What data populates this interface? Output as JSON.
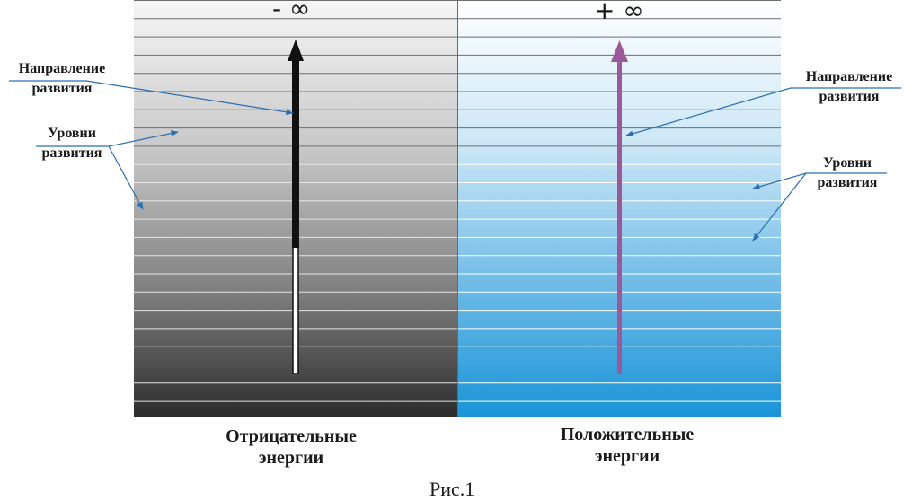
{
  "top": {
    "neg_infinity": "- ∞",
    "pos_infinity": "+ ∞"
  },
  "left_panel": {
    "direction_label_line1": "Направление",
    "direction_label_line2": "развития",
    "levels_label_line1": "Уровни",
    "levels_label_line2": "развития",
    "caption_line1": "Отрицательные",
    "caption_line2": "энергии",
    "arrow_color": "#111111"
  },
  "right_panel": {
    "direction_label_line1": "Направление",
    "direction_label_line2": "развития",
    "levels_label_line1": "Уровни",
    "levels_label_line2": "развития",
    "caption_line1": "Положительные",
    "caption_line2": "энергии",
    "arrow_color": "#9a5a9a"
  },
  "figure_caption": "Рис.1",
  "colors": {
    "left_gradient_top": "#f6f6f6",
    "left_gradient_bottom": "#2c2c2c",
    "right_gradient_top": "#ffffff",
    "right_gradient_bottom": "#1a94d8",
    "pointer_color": "#2a6fb0"
  }
}
